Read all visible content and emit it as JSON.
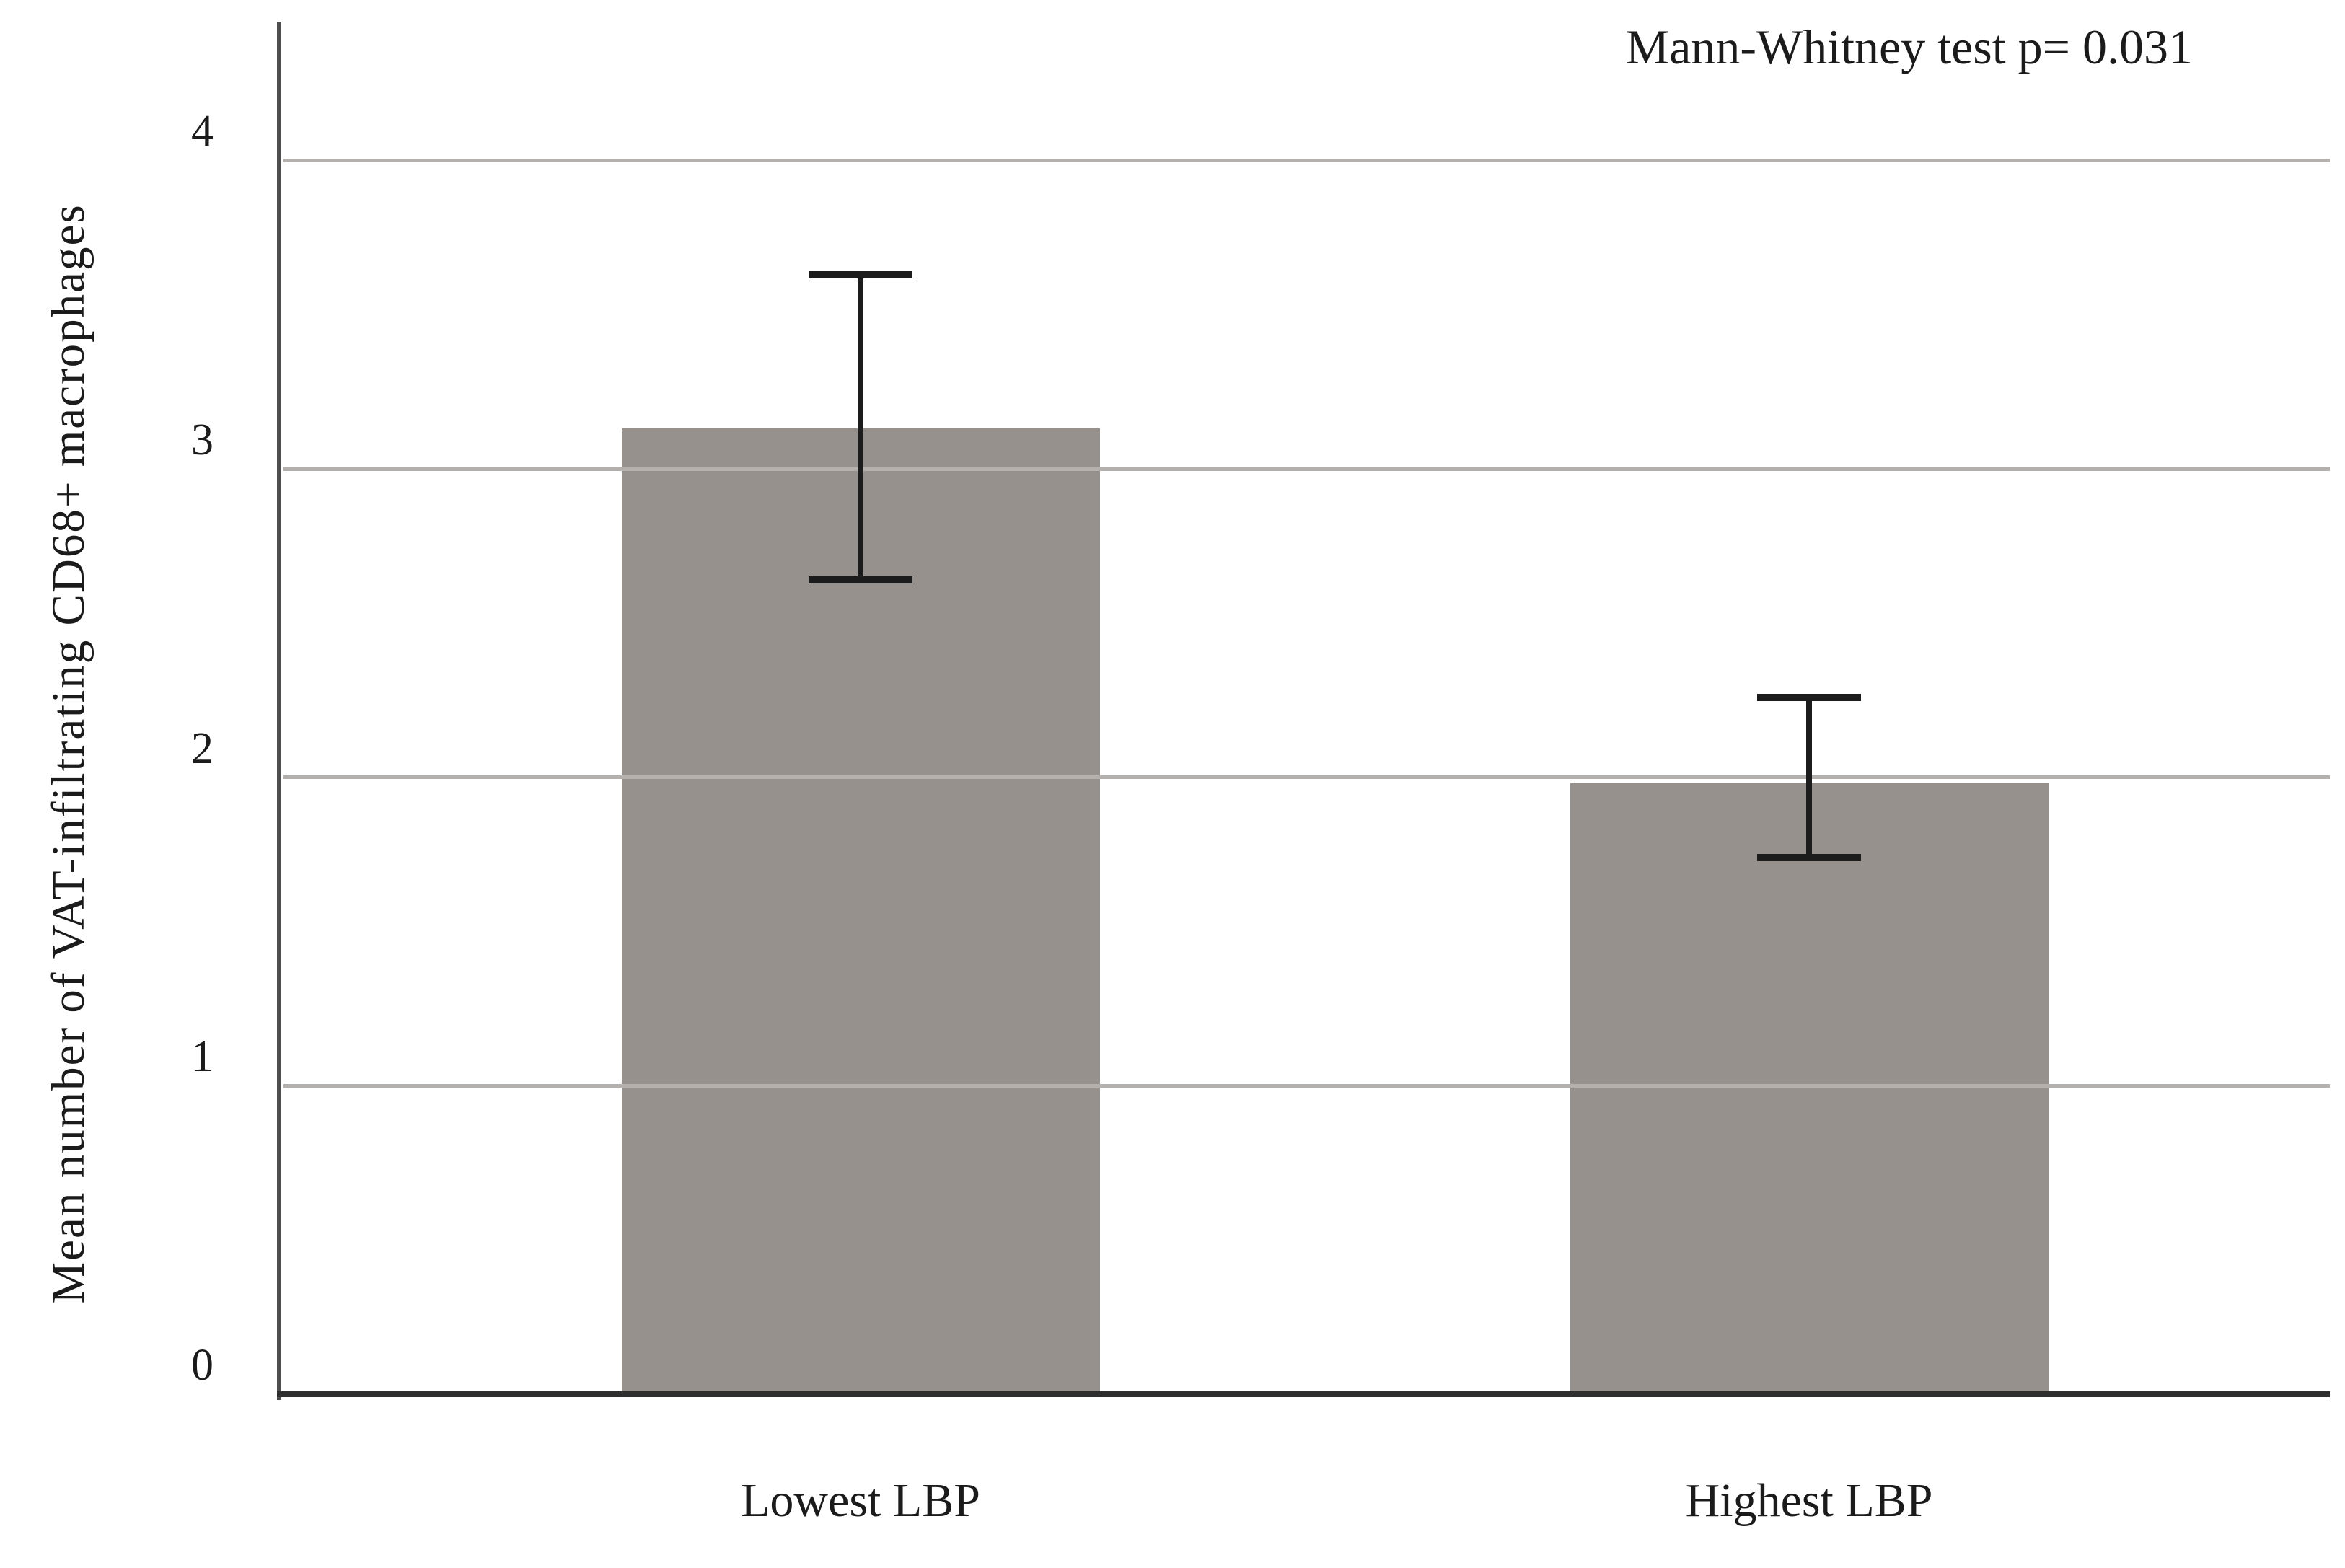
{
  "figure": {
    "background": "#ffffff",
    "annotation": "Mann-Whitney test p= 0.031"
  },
  "colors": {
    "bar": "#97918E",
    "gridline": "#B3B0AE",
    "y_axis_line": "#4D4D4D",
    "x_axis_line": "#2E2E2E",
    "error_bar": "#1C1C1C",
    "text": "#1B1B1B"
  },
  "chart_data": {
    "type": "bar",
    "title": "",
    "annotation": "Mann-Whitney test p= 0.031",
    "categories": [
      "Lowest LBP",
      "Highest LBP"
    ],
    "values": [
      3.13,
      1.98
    ],
    "error_low": [
      2.64,
      1.74
    ],
    "error_high": [
      3.63,
      2.26
    ],
    "xlabel": "",
    "ylabel": "Mean number of VAT-infiltrating CD68+ macrophages",
    "yticks": [
      0,
      1,
      2,
      3,
      4
    ],
    "ylim": [
      0,
      4.45
    ],
    "grid": "horizontal",
    "legend": "none",
    "bar_color": "#97918E"
  }
}
